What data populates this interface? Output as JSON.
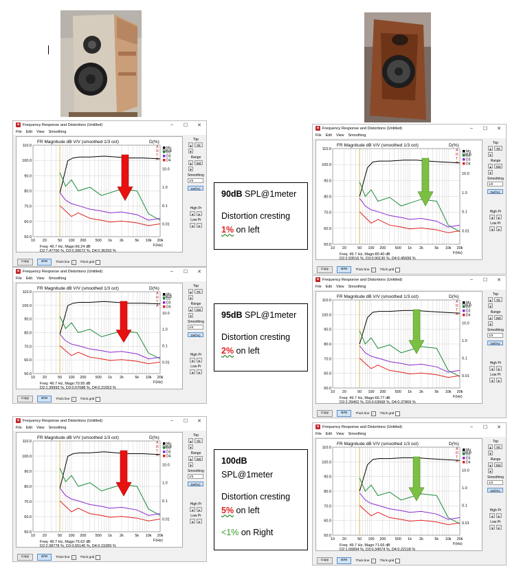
{
  "colors": {
    "mg": "#000000",
    "d2": "#1a8a3a",
    "d3": "#8a2ad0",
    "d4": "#e02020",
    "grid": "#cfcfcf",
    "marker": "#d4b020",
    "arrow_red": "#e81010",
    "arrow_green": "#7cc043"
  },
  "icons": {
    "app": "arta-app-icon",
    "minimize": "minimize-icon",
    "maximize": "maximize-icon",
    "close": "close-icon"
  },
  "window": {
    "title": "Frequency Response and Distortions (Untitled)",
    "menu": [
      "File",
      "Edit",
      "View",
      "Smoothing"
    ],
    "side": {
      "top": "Top",
      "fit": "Fit",
      "range": "Range",
      "set": "Set",
      "smoothing": "Smoothing",
      "smoothing_value": "1/3",
      "def": "Def(%)",
      "high_pr": "High Pr",
      "low_pr": "Low Pr"
    },
    "bottom": {
      "copy": "Copy",
      "bw": "B/W",
      "thick_line": "Thick line",
      "thick_grid": "Thick grid"
    },
    "legend": [
      "Mg",
      "D2",
      "D3",
      "D4"
    ],
    "arta": [
      "A",
      "R",
      "T",
      "A"
    ],
    "xticks": [
      "10",
      "20",
      "50",
      "100",
      "200",
      "500",
      "1k",
      "2k",
      "5k",
      "10k",
      "20k"
    ],
    "xunit": "F(Hz)",
    "rticks": [
      "100.0",
      "10.0",
      "1.0",
      "0.1",
      "0.01"
    ],
    "dunit": "D(%)"
  },
  "panels": [
    {
      "id": "left-90",
      "header": "FR Magnitude dB V/V (smoothed 1/3 oct)",
      "ymax": 110,
      "yticks": [
        "110.0",
        "100.0",
        "90.0",
        "80.0",
        "70.0",
        "60.0",
        "50.0"
      ],
      "status1": "Freq: 49.7 Hz, Magn:66.24 dB",
      "status2": "D2:7.47700 %, D3:0.30672 %, D4:0.36293 %"
    },
    {
      "id": "left-95",
      "header": "FR Magnitude dB V/V (smoothed 1/3 oct)",
      "ymax": 110,
      "yticks": [
        "110.0",
        "100.0",
        "90.0",
        "80.0",
        "70.0",
        "60.0",
        "50.0"
      ],
      "status1": "Freq: 49.7 Hz, Magn:70.95 dB",
      "status2": "D2:1.39993 %, D3:0.07088 %, D4:0.21053 %"
    },
    {
      "id": "left-100",
      "header": "FR Magnitude dB V/V (smoothed 1/3 oct)",
      "ymax": 110,
      "yticks": [
        "110.0",
        "100.0",
        "90.0",
        "80.0",
        "70.0",
        "60.0",
        "50.0"
      ],
      "status1": "Freq: 49.7 Hz, Magn:75.62 dB",
      "status2": "D2:2.98778 %, D3:0.65145 %, D4:0.19289 %"
    },
    {
      "id": "right-90",
      "header": "FR Magnitude dB V/V (smoothed 1/3 oct)",
      "ymax": 110,
      "yticks": [
        "110.0",
        "100.0",
        "90.0",
        "80.0",
        "70.0",
        "60.0",
        "50.0"
      ],
      "status1": "Freq: 49.7 Hz, Magn:80.40 dB",
      "status2": "D2:2.93516 %, D3:0.90130 %, D4:0.45699 %"
    },
    {
      "id": "right-95",
      "header": "FR Magnitude dB V/V (smoothed 1/3 oct)",
      "ymax": 110,
      "yticks": [
        "110.0",
        "100.0",
        "90.0",
        "80.0",
        "70.0",
        "60.0",
        "50.0"
      ],
      "status1": "Freq: 49.7 Hz, Magn:66.77 dB",
      "status2": "D2:2.39462 %, D3:0.63668 %, D4:0.37869 %"
    },
    {
      "id": "right-100",
      "header": "FR Magnitude dB V/V (smoothed 1/3 oct)",
      "ymax": 110,
      "yticks": [
        "110.0",
        "100.0",
        "90.0",
        "80.0",
        "70.0",
        "60.0",
        "50.0"
      ],
      "status1": "Freq: 49.7 Hz, Magn:71.66 dB",
      "status2": "D2:1.06894 %, D3:0.34974 %, D4:0.22118 %"
    }
  ],
  "notes": [
    {
      "level": "90dB",
      "unit": " SPL@1meter",
      "line": "Distortion cresting",
      "pct": "1%",
      "where": " on left"
    },
    {
      "level": "95dB",
      "unit": " SPL@1meter",
      "line": "Distortion cresting",
      "pct": "2%",
      "where": " on left"
    },
    {
      "level": "100dB",
      "unit": "SPL@1meter",
      "line": "Distortion cresting",
      "pct": "5%",
      "where": " on left",
      "extra_pct": "<1%",
      "extra_where": " on Right"
    }
  ]
}
